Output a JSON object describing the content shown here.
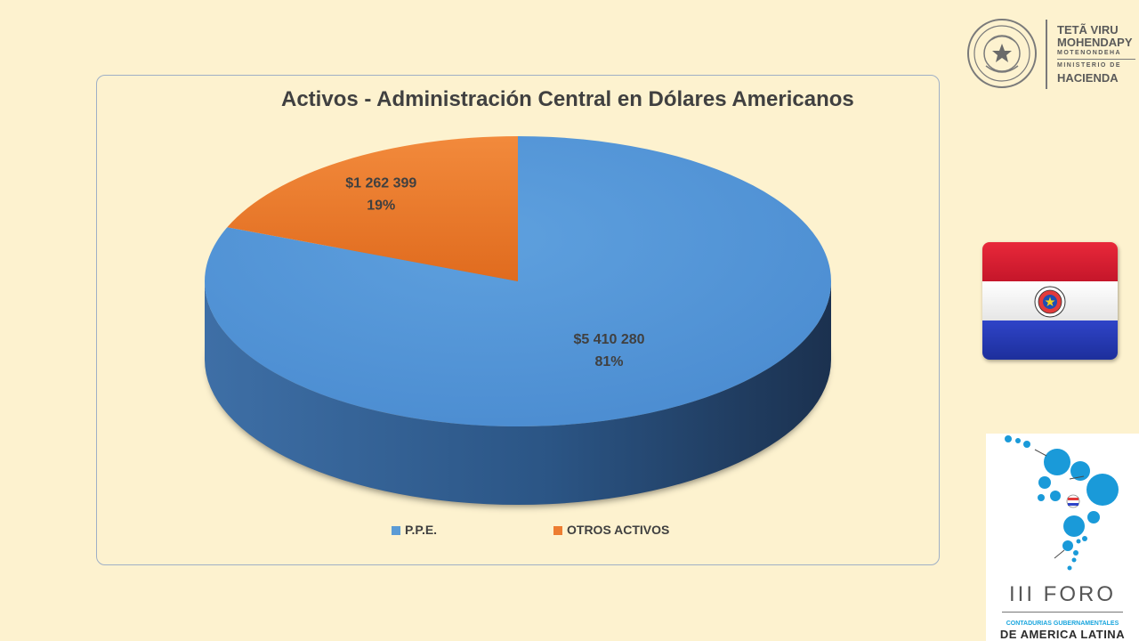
{
  "chart_data": {
    "type": "pie",
    "title": "Activos - Administración Central en Dólares Americanos",
    "categories": [
      "P.P.E.",
      "OTROS ACTIVOS"
    ],
    "values": [
      5410280,
      1262399
    ],
    "value_labels": [
      "$5 410 280",
      "$1 262 399"
    ],
    "percent_labels": [
      "81%",
      "19%"
    ],
    "colors": [
      "#5b9bd5",
      "#ed7d31"
    ],
    "style": "3d",
    "legend_position": "bottom"
  },
  "branding": {
    "ministry_line1": "TETÃ VIRU",
    "ministry_line2": "MOHENDAPY",
    "ministry_line3": "MOTENONDEHA",
    "ministry_line4": "MINISTERIO DE",
    "ministry_line5": "HACIENDA",
    "seal_text": "REPUBLICA DEL PARAGUAY",
    "forum_title": "III FORO",
    "forum_subtitle": "CONTADURIAS GUBERNAMENTALES",
    "forum_subtitle2": "DE AMERICA LATINA"
  }
}
